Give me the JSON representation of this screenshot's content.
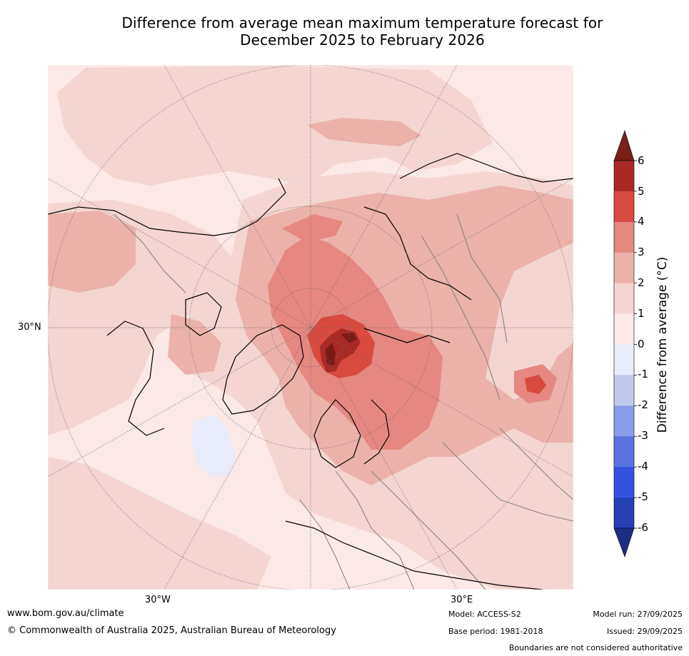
{
  "title": {
    "line1": "Difference from average mean maximum temperature forecast for",
    "line2": "December 2025 to February 2026"
  },
  "map": {
    "lat_label": "30°N",
    "lon_labels": {
      "west": "30°W",
      "east": "30°E"
    },
    "colors": {
      "ocean_base": "#fae9e6",
      "anom_1_2": "#f4d5d1",
      "anom_2_3": "#ecb1ab",
      "anom_3_4": "#e5887f",
      "anom_4_5": "#d94a3f",
      "anom_5_6": "#a92a24",
      "anom_gt6": "#7a1a15",
      "anom_neg": "#e8ebfa",
      "coast": "#000000",
      "border": "#808080",
      "grid": "#666666"
    }
  },
  "colorbar": {
    "title": "Difference from average (°C)",
    "ticks": [
      "6",
      "5",
      "4",
      "3",
      "2",
      "1",
      "0",
      "-1",
      "-2",
      "-3",
      "-4",
      "-5",
      "-6"
    ],
    "bands": [
      {
        "range": "5 to 6",
        "color": "#a92a24"
      },
      {
        "range": "4 to 5",
        "color": "#d94a3f"
      },
      {
        "range": "3 to 4",
        "color": "#e5887f"
      },
      {
        "range": "2 to 3",
        "color": "#ecb1ab"
      },
      {
        "range": "1 to 2",
        "color": "#f4d5d1"
      },
      {
        "range": "0 to 1",
        "color": "#fae9e6"
      },
      {
        "range": "-1 to 0",
        "color": "#e8ebfa"
      },
      {
        "range": "-2 to -1",
        "color": "#c0c8f0"
      },
      {
        "range": "-3 to -2",
        "color": "#8a9bea"
      },
      {
        "range": "-4 to -3",
        "color": "#5b73e2"
      },
      {
        "range": "-5 to -4",
        "color": "#3551de"
      },
      {
        "range": "-6 to -5",
        "color": "#2640b4"
      }
    ],
    "over_color": "#7a1f1a",
    "under_color": "#1f2c84"
  },
  "footer": {
    "url": "www.bom.gov.au/climate",
    "copyright": "© Commonwealth of Australia 2025, Australian Bureau of Meteorology",
    "model": "Model: ACCESS-S2",
    "base_period": "Base period: 1981-2018",
    "model_run": "Model run: 27/09/2025",
    "issued": "Issued: 29/09/2025",
    "disclaimer": "Boundaries are not considered authoritative"
  }
}
